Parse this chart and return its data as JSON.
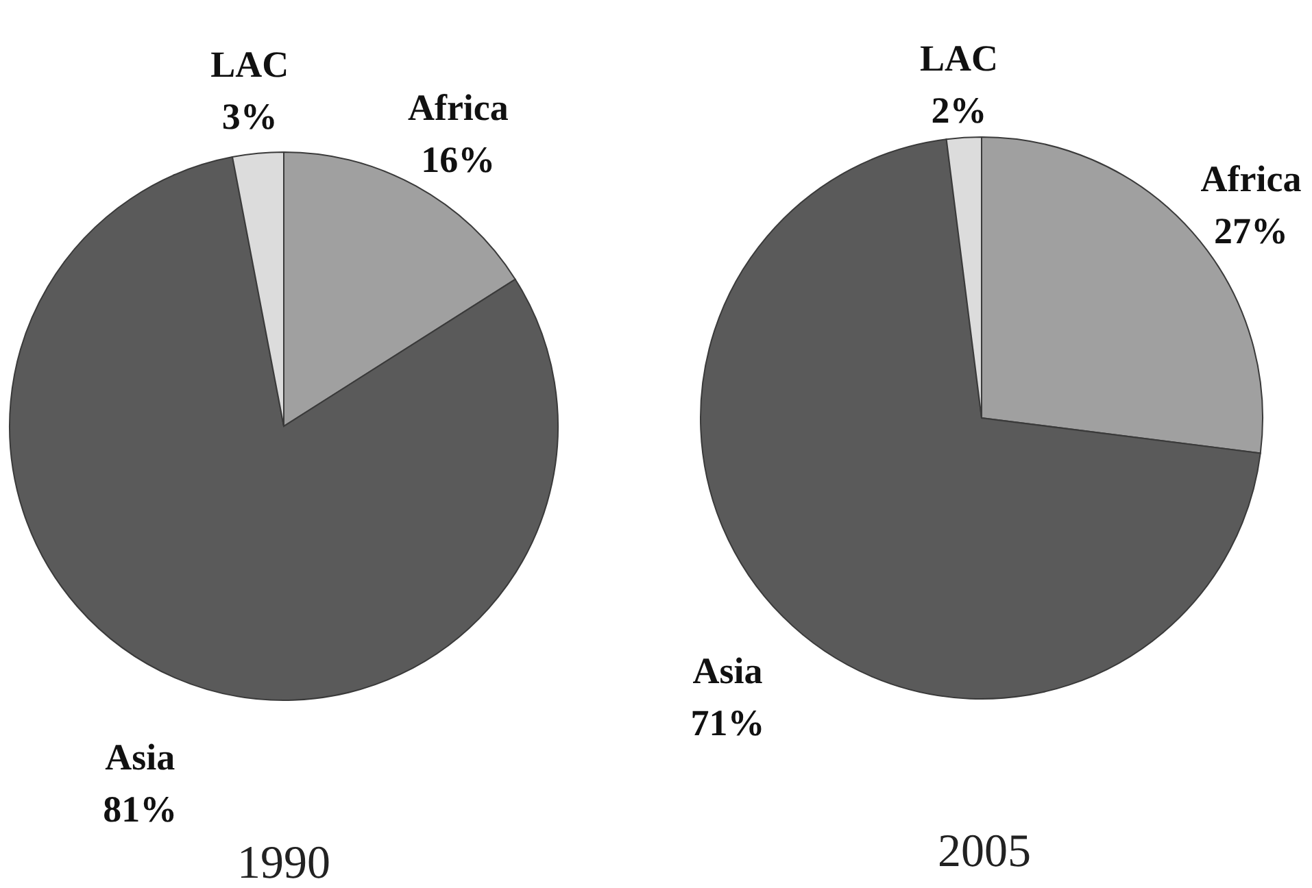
{
  "chart_data": [
    {
      "type": "pie",
      "title": "1990",
      "categories": [
        "Africa",
        "Asia",
        "LAC"
      ],
      "values": [
        16,
        81,
        3
      ],
      "value_labels": [
        "16%",
        "81%",
        "3%"
      ],
      "colors": [
        "#a0a0a0",
        "#5a5a5a",
        "#dcdcdc"
      ]
    },
    {
      "type": "pie",
      "title": "2005",
      "categories": [
        "Africa",
        "Asia",
        "LAC"
      ],
      "values": [
        27,
        71,
        2
      ],
      "value_labels": [
        "27%",
        "71%",
        "2%"
      ],
      "colors": [
        "#a0a0a0",
        "#5a5a5a",
        "#dcdcdc"
      ]
    }
  ]
}
